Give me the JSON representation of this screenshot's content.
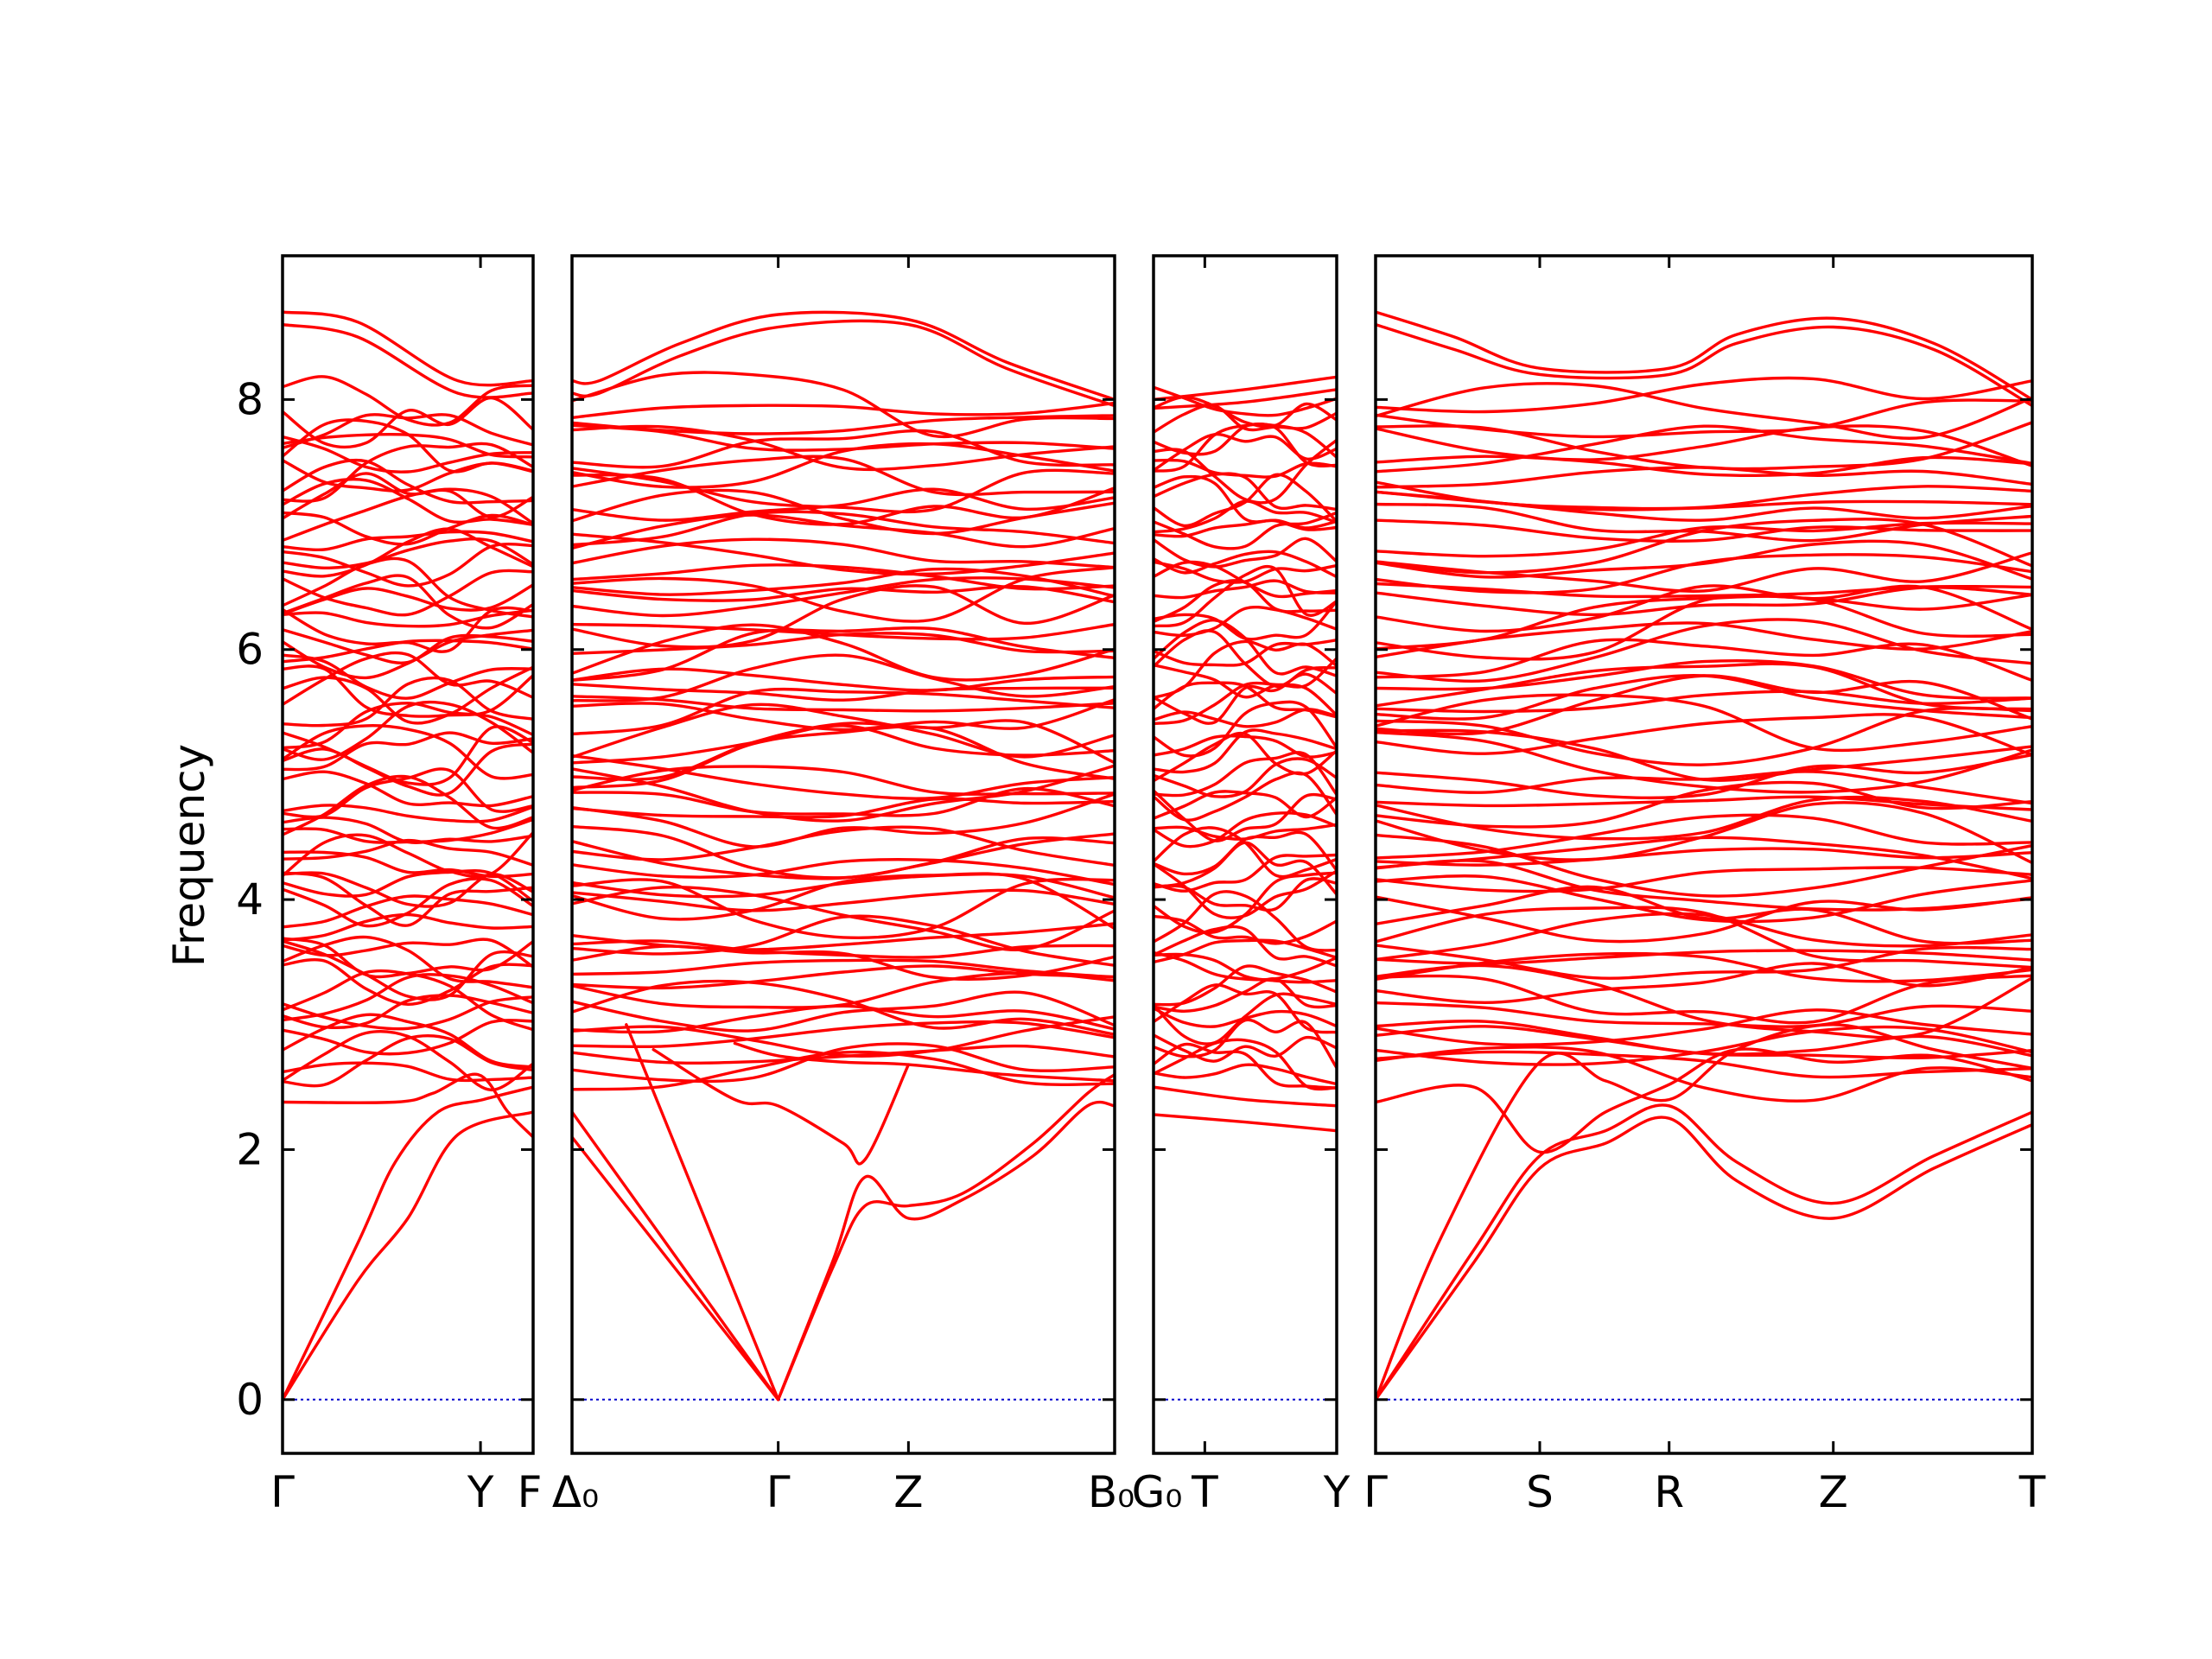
{
  "chart_data": {
    "type": "line",
    "ylabel": "Frequency",
    "ylim": [
      -0.43,
      9.15
    ],
    "yticks": [
      0,
      2,
      4,
      6,
      8
    ],
    "band_color": "#ff0000",
    "zero_line_color": "#0000cc",
    "grid": false,
    "panels": [
      {
        "xlim": [
          0,
          1.0
        ],
        "ticks": [
          {
            "x": 0.0,
            "label": "Γ"
          },
          {
            "x": 0.79,
            "label": "Y"
          }
        ],
        "edge_labels": {
          "left": "",
          "right": "F"
        },
        "acoustic": [
          {
            "x": [
              0,
              0.3,
              0.5,
              0.7,
              1.0
            ],
            "y": [
              0,
              0.95,
              1.45,
              2.12,
              2.3
            ]
          },
          {
            "x": [
              0,
              0.3,
              0.45,
              0.62,
              0.8,
              1.0
            ],
            "y": [
              0,
              1.25,
              1.9,
              2.3,
              2.4,
              2.5
            ]
          },
          {
            "x": [
              0,
              0.45,
              0.6,
              0.78,
              0.9,
              1.0
            ],
            "y": [
              2.38,
              2.38,
              2.45,
              2.6,
              2.3,
              2.1
            ]
          }
        ],
        "top": [
          {
            "x": [
              0,
              0.3,
              0.7,
              1.0
            ],
            "y": [
              8.7,
              8.62,
              8.15,
              8.15
            ]
          },
          {
            "x": [
              0,
              0.3,
              0.7,
              1.0
            ],
            "y": [
              8.6,
              8.5,
              8.05,
              8.05
            ]
          }
        ]
      },
      {
        "xlim": [
          0,
          1.0
        ],
        "ticks": [
          {
            "x": 0.38,
            "label": "Γ"
          },
          {
            "x": 0.62,
            "label": "Z"
          }
        ],
        "edge_labels": {
          "left": "Δ₀",
          "right": "B₀"
        },
        "acoustic": [
          {
            "x": [
              0,
              0.38
            ],
            "y": [
              2.1,
              0.0
            ]
          },
          {
            "x": [
              0,
              0.38
            ],
            "y": [
              2.3,
              0.0
            ]
          },
          {
            "x": [
              0.1,
              0.38
            ],
            "y": [
              3.0,
              0.0
            ]
          },
          {
            "x": [
              0.38,
              0.48,
              0.54,
              0.62,
              0.72,
              0.85,
              0.95,
              1.0
            ],
            "y": [
              0.0,
              1.1,
              1.78,
              1.45,
              1.6,
              1.95,
              2.35,
              2.35
            ]
          },
          {
            "x": [
              0.38,
              0.48,
              0.54,
              0.62,
              0.72,
              0.85,
              0.95,
              1.0
            ],
            "y": [
              0.0,
              1.05,
              1.55,
              1.55,
              1.65,
              2.05,
              2.45,
              2.6
            ]
          },
          {
            "x": [
              0.15,
              0.3,
              0.38,
              0.5,
              0.54,
              0.62
            ],
            "y": [
              2.8,
              2.4,
              2.35,
              2.05,
              1.92,
              2.68
            ]
          },
          {
            "x": [
              0.3,
              0.38,
              0.5,
              0.62,
              0.8,
              1.0
            ],
            "y": [
              2.85,
              2.75,
              2.7,
              2.68,
              2.6,
              2.55
            ]
          }
        ],
        "top": [
          {
            "x": [
              0,
              0.05,
              0.2,
              0.38,
              0.62,
              0.8,
              1.0
            ],
            "y": [
              8.15,
              8.15,
              8.45,
              8.68,
              8.64,
              8.3,
              8.0
            ]
          },
          {
            "x": [
              0,
              0.05,
              0.2,
              0.38,
              0.62,
              0.8,
              1.0
            ],
            "y": [
              8.05,
              8.05,
              8.35,
              8.58,
              8.6,
              8.25,
              7.95
            ]
          }
        ]
      },
      {
        "xlim": [
          0,
          1.0
        ],
        "ticks": [
          {
            "x": 0.28,
            "label": "T"
          },
          {
            "x": 1.0,
            "label": "Y"
          }
        ],
        "edge_labels": {
          "left": "G₀",
          "right": ""
        },
        "acoustic": [
          {
            "x": [
              0,
              0.5,
              1.0
            ],
            "y": [
              2.28,
              2.22,
              2.15
            ]
          },
          {
            "x": [
              0,
              0.5,
              1.0
            ],
            "y": [
              2.5,
              2.4,
              2.35
            ]
          }
        ],
        "top": [
          {
            "x": [
              0,
              0.5,
              1.0
            ],
            "y": [
              8.0,
              8.08,
              8.18
            ]
          },
          {
            "x": [
              0,
              0.5,
              1.0
            ],
            "y": [
              7.93,
              7.98,
              8.08
            ]
          }
        ]
      },
      {
        "xlim": [
          0,
          1.0
        ],
        "ticks": [
          {
            "x": 0.0,
            "label": "Γ"
          },
          {
            "x": 0.25,
            "label": "S"
          },
          {
            "x": 0.447,
            "label": "R"
          },
          {
            "x": 0.697,
            "label": "Z"
          },
          {
            "x": 1.0,
            "label": "T"
          }
        ],
        "edge_labels": {
          "left": "",
          "right": ""
        },
        "acoustic": [
          {
            "x": [
              0,
              0.15,
              0.25,
              0.35,
              0.447,
              0.55,
              0.697,
              0.85,
              1.0
            ],
            "y": [
              0,
              1.2,
              1.95,
              2.15,
              2.35,
              1.9,
              1.57,
              1.95,
              2.3
            ]
          },
          {
            "x": [
              0,
              0.15,
              0.25,
              0.35,
              0.447,
              0.55,
              0.697,
              0.85,
              1.0
            ],
            "y": [
              0,
              1.1,
              1.85,
              2.05,
              2.25,
              1.75,
              1.45,
              1.85,
              2.2
            ]
          },
          {
            "x": [
              0,
              0.15,
              0.25,
              0.35,
              0.447,
              0.55,
              0.697,
              0.85,
              1.0
            ],
            "y": [
              2.38,
              2.5,
              1.98,
              2.3,
              2.52,
              2.8,
              2.7,
              2.75,
              2.55
            ]
          },
          {
            "x": [
              0,
              0.1,
              0.25,
              0.35,
              0.447,
              0.55,
              0.697,
              0.85,
              1.0
            ],
            "y": [
              0,
              1.3,
              2.7,
              2.55,
              2.4,
              2.8,
              3.0,
              2.8,
              2.65
            ]
          }
        ],
        "top": [
          {
            "x": [
              0,
              0.12,
              0.25,
              0.447,
              0.55,
              0.697,
              0.85,
              1.0
            ],
            "y": [
              8.7,
              8.5,
              8.25,
              8.25,
              8.52,
              8.65,
              8.45,
              8.0
            ]
          },
          {
            "x": [
              0,
              0.12,
              0.25,
              0.447,
              0.55,
              0.697,
              0.85,
              1.0
            ],
            "y": [
              8.6,
              8.4,
              8.2,
              8.2,
              8.45,
              8.58,
              8.4,
              7.95
            ]
          }
        ]
      }
    ]
  }
}
